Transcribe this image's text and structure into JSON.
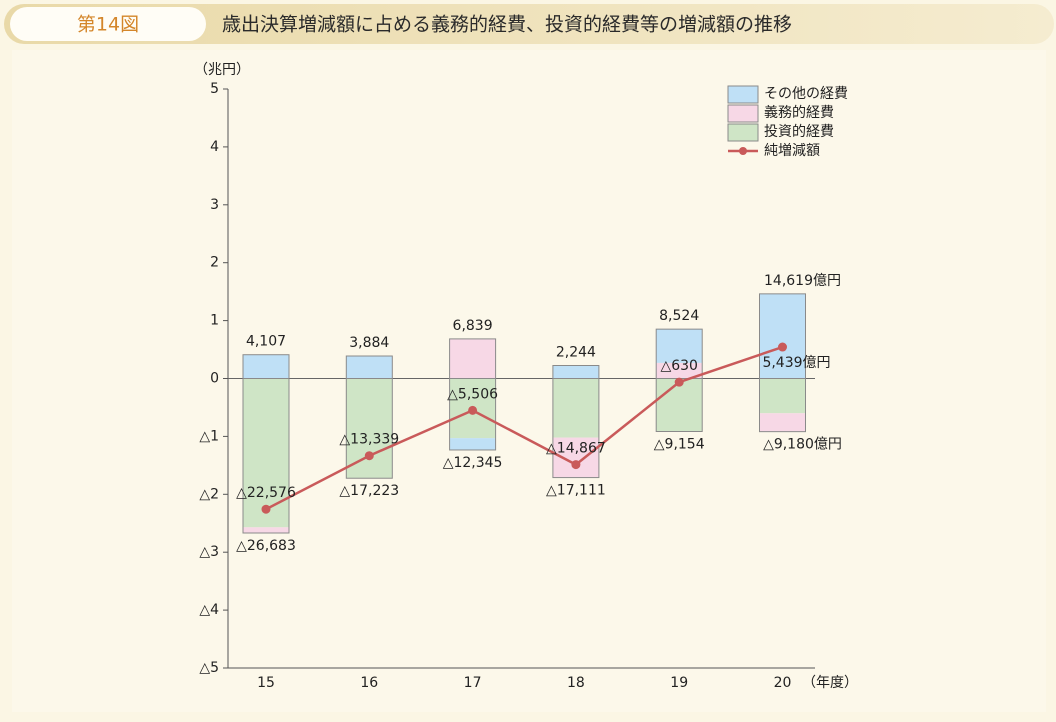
{
  "header": {
    "figure_number": "第14図",
    "title": "歳出決算増減額に占める義務的経費、投資的経費等の増減額の推移"
  },
  "chart_data": {
    "type": "bar",
    "y_axis_label": "（兆円）",
    "x_axis_label": "（年度）",
    "categories": [
      "15",
      "16",
      "17",
      "18",
      "19",
      "20"
    ],
    "ylim": [
      -5,
      5
    ],
    "yticks": [
      5,
      4,
      3,
      2,
      1,
      0,
      {
        "value": -1,
        "label": "△1"
      },
      {
        "value": -2,
        "label": "△2"
      },
      {
        "value": -3,
        "label": "△3"
      },
      {
        "value": -4,
        "label": "△4"
      },
      {
        "value": -5,
        "label": "△5"
      }
    ],
    "legend": "top-right",
    "series": [
      {
        "name": "投資的経費",
        "color": "#cfe5c6",
        "values": [
          -2.57,
          -1.7223,
          -1.03,
          -1.02,
          -0.9154,
          -0.6
        ]
      },
      {
        "name": "義務的経費",
        "color": "#f7d8e6",
        "values": [
          -0.0983,
          0,
          0.6839,
          -0.6911,
          0.27,
          -0.318
        ]
      },
      {
        "name": "その他の経費",
        "color": "#bfe0f6",
        "values": [
          0.4107,
          0.3884,
          -0.2045,
          0.2244,
          0.5824,
          1.4619
        ]
      }
    ],
    "positive_totals": {
      "values": [
        0.4107,
        0.3884,
        0.6839,
        0.2244,
        0.8524,
        1.4619
      ],
      "value_labels": [
        "4,107",
        "3,884",
        "6,839",
        "2,244",
        "8,524",
        "14,619億円"
      ]
    },
    "negative_totals": {
      "values": [
        -2.6683,
        -1.7223,
        -1.2345,
        -1.7111,
        -0.9154,
        -0.918
      ],
      "value_labels": [
        "△26,683",
        "△17,223",
        "△12,345",
        "△17,111",
        "△9,154",
        "△9,180億円"
      ]
    },
    "line": {
      "name": "純増減額",
      "color": "#c95a5a",
      "values": [
        -2.2576,
        -1.3339,
        -0.5506,
        -1.4867,
        -0.063,
        0.5439
      ],
      "value_labels": [
        "△22,576",
        "△13,339",
        "△5,506",
        "△14,867",
        "△630",
        "5,439億円"
      ]
    }
  }
}
